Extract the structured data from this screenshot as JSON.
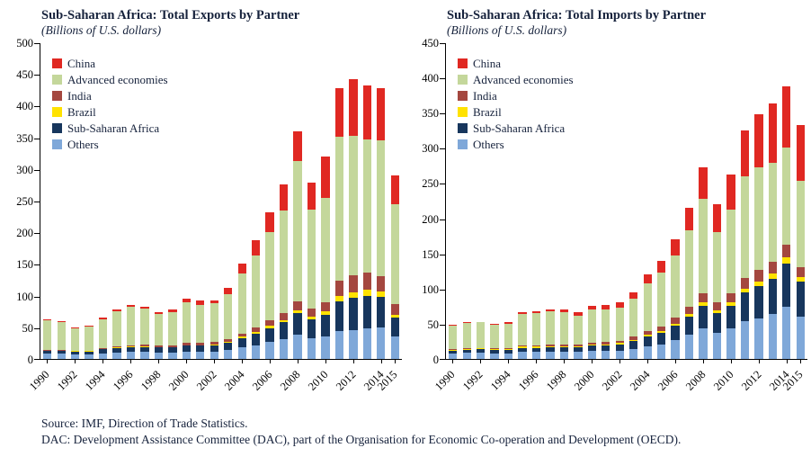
{
  "figure": {
    "footer_line1": "Source: IMF, Direction of Trade Statistics.",
    "footer_line2": "DAC: Development Assistance Committee (DAC), part of the Organisation for Economic Co-operation and Development (OECD)."
  },
  "chart_data": [
    {
      "type": "bar",
      "stacked": true,
      "title": "Sub-Saharan Africa: Total Exports by Partner",
      "subtitle": "(Billions of U.S. dollars)",
      "ylim": [
        0,
        500
      ],
      "ytick_step": 50,
      "grid": false,
      "legend_position": "top-left",
      "categories": [
        1990,
        1991,
        1992,
        1993,
        1994,
        1995,
        1996,
        1997,
        1998,
        1999,
        2000,
        2001,
        2002,
        2003,
        2004,
        2005,
        2006,
        2007,
        2008,
        2009,
        2010,
        2011,
        2012,
        2013,
        2014,
        2015
      ],
      "x_tick_labels": [
        "1990",
        "1992",
        "1994",
        "1996",
        "1998",
        "2000",
        "2002",
        "2004",
        "2006",
        "2008",
        "2010",
        "2012",
        "2014",
        "2015"
      ],
      "stack_order_bottom_to_top": [
        "Others",
        "Sub-Saharan Africa",
        "Brazil",
        "India",
        "Advanced economies",
        "China"
      ],
      "series": [
        {
          "name": "China",
          "color": "#e02822",
          "values": [
            1.5,
            1.5,
            1,
            1.5,
            2,
            2.5,
            3,
            3.5,
            3.5,
            3.5,
            5,
            6,
            5.5,
            10,
            15,
            24,
            30,
            41,
            47,
            42,
            65,
            77,
            90,
            86,
            82,
            46
          ]
        },
        {
          "name": "Advanced economies",
          "color": "#c4d79b",
          "values": [
            46,
            44,
            35.5,
            37,
            46,
            55.5,
            60,
            57,
            49,
            53,
            65,
            60.5,
            61,
            71,
            94.5,
            114.5,
            140,
            161.5,
            222.5,
            157,
            165,
            228,
            220,
            210,
            214,
            158
          ]
        },
        {
          "name": "India",
          "color": "#a4473f",
          "values": [
            1,
            1,
            1,
            1,
            1.5,
            2,
            2,
            2.5,
            2.5,
            2.5,
            3,
            3.5,
            3.5,
            4.5,
            5.5,
            7,
            9,
            11,
            14,
            12,
            15,
            24,
            27,
            27,
            25,
            16
          ]
        },
        {
          "name": "Brazil",
          "color": "#ffe200",
          "values": [
            0.5,
            0.5,
            0.5,
            0.5,
            0.5,
            1,
            1,
            1,
            1,
            1,
            1,
            1,
            1,
            1.5,
            2,
            2.5,
            3,
            3.5,
            4.5,
            4,
            5,
            8,
            9,
            9,
            8,
            4
          ]
        },
        {
          "name": "Sub-Saharan Africa",
          "color": "#17365d",
          "values": [
            5,
            5,
            5,
            5,
            6,
            7,
            8,
            8,
            8,
            8,
            9,
            9,
            10,
            12,
            15,
            18,
            22,
            27,
            34,
            30,
            35,
            47,
            50,
            52,
            48,
            30
          ]
        },
        {
          "name": "Others",
          "color": "#7fa8d9",
          "values": [
            8,
            8,
            7,
            7,
            9,
            10,
            11,
            11,
            10,
            10,
            12,
            12,
            12,
            14,
            18,
            22,
            27,
            31,
            38,
            33,
            35,
            44,
            46,
            48,
            50,
            36
          ]
        }
      ]
    },
    {
      "type": "bar",
      "stacked": true,
      "title": "Sub-Saharan Africa: Total Imports by Partner",
      "subtitle": "(Billions of U.S. dollars)",
      "ylim": [
        0,
        450
      ],
      "ytick_step": 50,
      "grid": false,
      "legend_position": "top-left",
      "categories": [
        1990,
        1991,
        1992,
        1993,
        1994,
        1995,
        1996,
        1997,
        1998,
        1999,
        2000,
        2001,
        2002,
        2003,
        2004,
        2005,
        2006,
        2007,
        2008,
        2009,
        2010,
        2011,
        2012,
        2013,
        2014,
        2015
      ],
      "x_tick_labels": [
        "1990",
        "1992",
        "1994",
        "1996",
        "1998",
        "2000",
        "2002",
        "2004",
        "2006",
        "2008",
        "2010",
        "2012",
        "2014",
        "2015"
      ],
      "stack_order_bottom_to_top": [
        "Others",
        "Sub-Saharan Africa",
        "Brazil",
        "India",
        "Advanced economies",
        "China"
      ],
      "series": [
        {
          "name": "China",
          "color": "#e02822",
          "values": [
            1,
            1,
            1,
            1,
            1.5,
            2.5,
            3,
            3.5,
            4,
            4,
            5,
            6,
            7,
            9,
            13,
            17.5,
            23,
            32,
            45,
            40,
            50,
            65,
            75,
            84,
            87,
            79
          ]
        },
        {
          "name": "Advanced economies",
          "color": "#c4d79b",
          "values": [
            33,
            36,
            36,
            34,
            35,
            45,
            45.5,
            46.5,
            45,
            41,
            46.5,
            47,
            47,
            54.5,
            67,
            76,
            88.5,
            109,
            133,
            100,
            118,
            145,
            147,
            141,
            139,
            122
          ]
        },
        {
          "name": "India",
          "color": "#a4473f",
          "values": [
            1,
            1,
            1,
            1,
            1.5,
            2,
            2,
            2.5,
            2.5,
            2.5,
            3,
            3.5,
            3.5,
            4.5,
            5.5,
            6.5,
            8,
            10,
            13,
            11,
            13,
            15,
            16,
            17,
            18,
            15
          ]
        },
        {
          "name": "Brazil",
          "color": "#ffe200",
          "values": [
            1,
            1,
            1,
            1,
            1,
            1.5,
            1.5,
            1.5,
            1.5,
            1.5,
            1.5,
            1.5,
            1.5,
            2,
            2.5,
            3,
            3.5,
            4,
            5,
            4,
            5,
            6,
            7,
            7,
            8,
            6
          ]
        },
        {
          "name": "Sub-Saharan Africa",
          "color": "#17365d",
          "values": [
            4,
            4,
            5,
            5,
            5,
            6,
            6,
            7,
            7,
            7,
            8,
            8,
            9,
            11,
            14,
            16,
            20,
            26,
            32,
            28,
            32,
            40,
            45,
            50,
            62,
            50
          ]
        },
        {
          "name": "Others",
          "color": "#7fa8d9",
          "values": [
            8,
            9,
            9,
            8,
            8,
            10,
            10,
            10,
            10,
            10,
            11,
            11,
            12,
            14,
            18,
            21,
            27,
            34,
            44,
            37,
            44,
            54,
            58,
            64,
            74,
            60
          ]
        }
      ]
    }
  ]
}
